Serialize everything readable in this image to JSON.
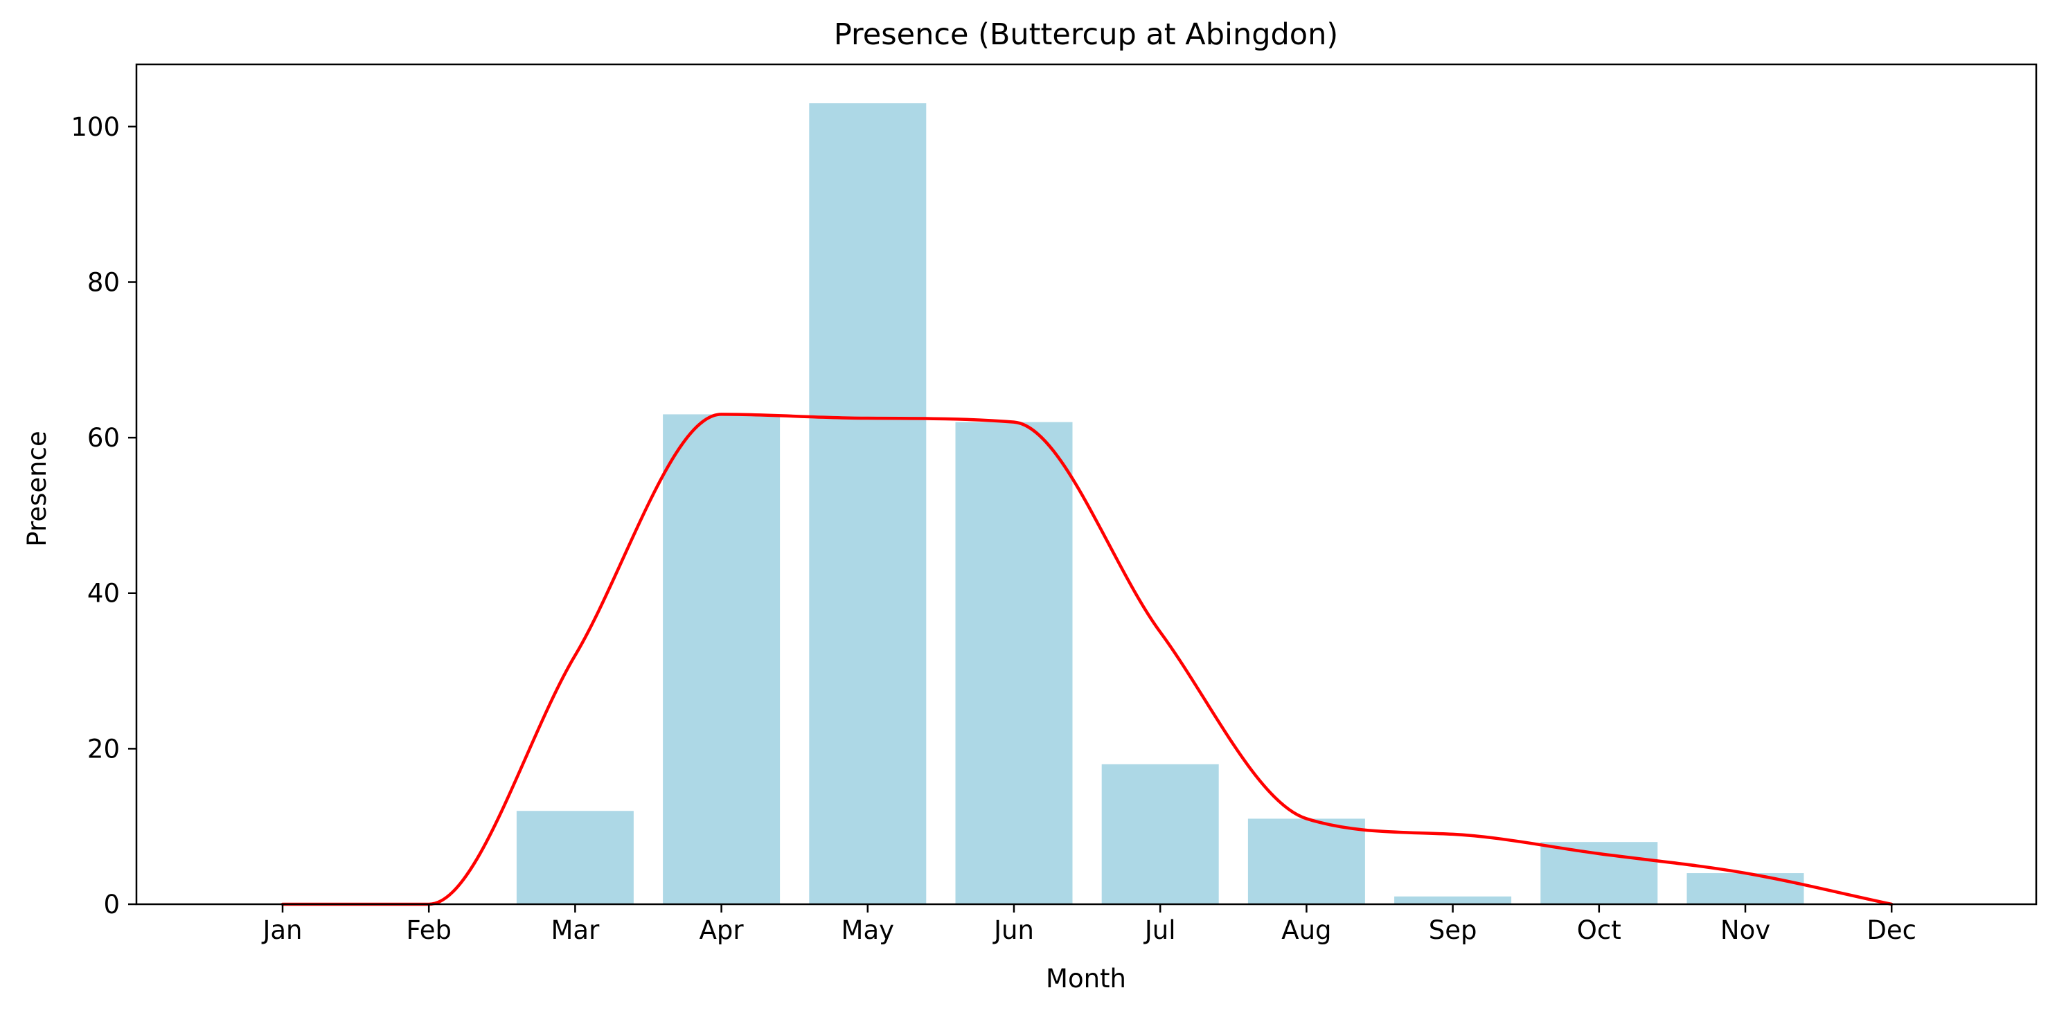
{
  "chart_data": {
    "type": "bar",
    "title": "Presence (Buttercup at Abingdon)",
    "xlabel": "Month",
    "ylabel": "Presence",
    "categories": [
      "Jan",
      "Feb",
      "Mar",
      "Apr",
      "May",
      "Jun",
      "Jul",
      "Aug",
      "Sep",
      "Oct",
      "Nov",
      "Dec"
    ],
    "series": [
      {
        "type": "bar",
        "values": [
          0,
          0,
          12,
          63,
          103,
          62,
          18,
          11,
          1,
          8,
          4,
          0
        ],
        "color": "#add8e6"
      },
      {
        "type": "line",
        "values": [
          0,
          0,
          32,
          63,
          62.5,
          62,
          35,
          11,
          9,
          6.5,
          4,
          0
        ],
        "color": "#ff0000"
      }
    ],
    "ylim": [
      0,
      108
    ],
    "yticks": [
      0,
      20,
      40,
      60,
      80,
      100
    ],
    "grid": false,
    "legend": "none"
  }
}
